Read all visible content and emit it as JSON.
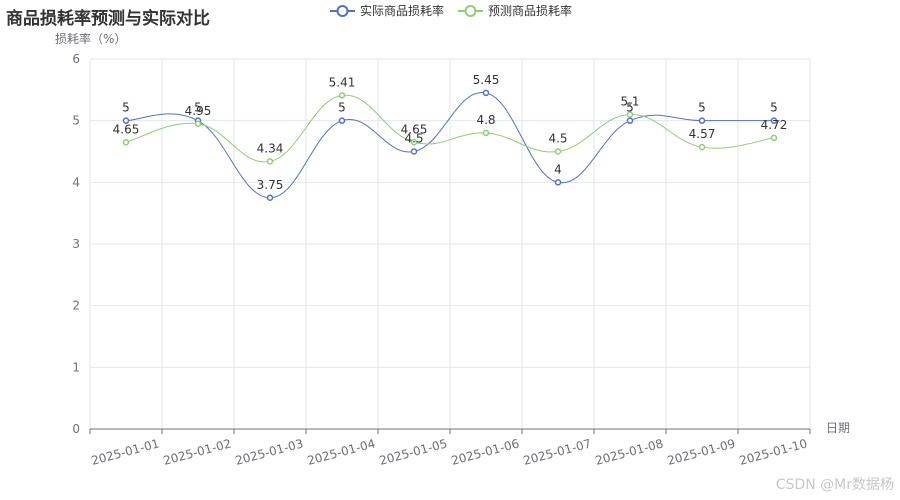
{
  "chart_data": {
    "type": "line",
    "title": "商品损耗率预测与实际对比",
    "ylabel": "损耗率（%）",
    "xlabel": "日期",
    "categories": [
      "2025-01-01",
      "2025-01-02",
      "2025-01-03",
      "2025-01-04",
      "2025-01-05",
      "2025-01-06",
      "2025-01-07",
      "2025-01-08",
      "2025-01-09",
      "2025-01-10"
    ],
    "series": [
      {
        "name": "实际商品损耗率",
        "color": "#5470c6",
        "values": [
          5,
          5,
          3.75,
          5,
          4.5,
          5.45,
          4,
          5,
          5,
          5
        ]
      },
      {
        "name": "预测商品损耗率",
        "color": "#91cc75",
        "values": [
          4.65,
          4.95,
          4.34,
          5.41,
          4.65,
          4.8,
          4.5,
          5.1,
          4.57,
          4.72
        ]
      }
    ],
    "ylim": [
      0,
      6
    ],
    "yticks": [
      0,
      1,
      2,
      3,
      4,
      5,
      6
    ],
    "smooth": true,
    "grid": true,
    "legend_position": "top-center"
  },
  "watermark": "CSDN @Mr数据杨"
}
